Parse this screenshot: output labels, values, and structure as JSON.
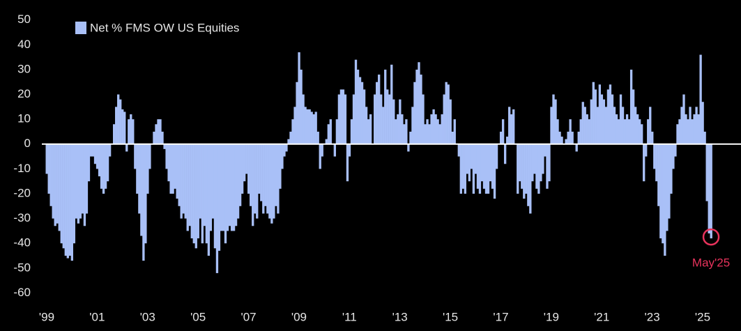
{
  "chart_data": {
    "type": "bar",
    "legend": "Net % FMS OW US Equities",
    "color": "#a9c0f7",
    "annotation": {
      "label": "May'25",
      "index": 316,
      "color": "#e8335c"
    },
    "ylim": [
      -65.5,
      57.5
    ],
    "yticks": [
      -60,
      -50,
      -40,
      -30,
      -20,
      -10,
      0,
      10,
      20,
      30,
      40,
      50
    ],
    "categories": [
      "'99",
      null,
      null,
      null,
      null,
      null,
      null,
      null,
      null,
      null,
      null,
      null,
      null,
      null,
      null,
      null,
      null,
      null,
      null,
      null,
      null,
      null,
      null,
      null,
      "'01",
      null,
      null,
      null,
      null,
      null,
      null,
      null,
      null,
      null,
      null,
      null,
      null,
      null,
      null,
      null,
      null,
      null,
      null,
      null,
      null,
      null,
      null,
      null,
      "'03",
      null,
      null,
      null,
      null,
      null,
      null,
      null,
      null,
      null,
      null,
      null,
      null,
      null,
      null,
      null,
      null,
      null,
      null,
      null,
      null,
      null,
      null,
      null,
      "'05",
      null,
      null,
      null,
      null,
      null,
      null,
      null,
      null,
      null,
      null,
      null,
      null,
      null,
      null,
      null,
      null,
      null,
      null,
      null,
      null,
      null,
      null,
      null,
      "'07",
      null,
      null,
      null,
      null,
      null,
      null,
      null,
      null,
      null,
      null,
      null,
      null,
      null,
      null,
      null,
      null,
      null,
      null,
      null,
      null,
      null,
      null,
      null,
      "'09",
      null,
      null,
      null,
      null,
      null,
      null,
      null,
      null,
      null,
      null,
      null,
      null,
      null,
      null,
      null,
      null,
      null,
      null,
      null,
      null,
      null,
      null,
      null,
      "'11",
      null,
      null,
      null,
      null,
      null,
      null,
      null,
      null,
      null,
      null,
      null,
      null,
      null,
      null,
      null,
      null,
      null,
      null,
      null,
      null,
      null,
      null,
      null,
      "'13",
      null,
      null,
      null,
      null,
      null,
      null,
      null,
      null,
      null,
      null,
      null,
      null,
      null,
      null,
      null,
      null,
      null,
      null,
      null,
      null,
      null,
      null,
      null,
      "'15",
      null,
      null,
      null,
      null,
      null,
      null,
      null,
      null,
      null,
      null,
      null,
      null,
      null,
      null,
      null,
      null,
      null,
      null,
      null,
      null,
      null,
      null,
      null,
      "'17",
      null,
      null,
      null,
      null,
      null,
      null,
      null,
      null,
      null,
      null,
      null,
      null,
      null,
      null,
      null,
      null,
      null,
      null,
      null,
      null,
      null,
      null,
      null,
      "'19",
      null,
      null,
      null,
      null,
      null,
      null,
      null,
      null,
      null,
      null,
      null,
      null,
      null,
      null,
      null,
      null,
      null,
      null,
      null,
      null,
      null,
      null,
      null,
      "'21",
      null,
      null,
      null,
      null,
      null,
      null,
      null,
      null,
      null,
      null,
      null,
      null,
      null,
      null,
      null,
      null,
      null,
      null,
      null,
      null,
      null,
      null,
      null,
      "'23",
      null,
      null,
      null,
      null,
      null,
      null,
      null,
      null,
      null,
      null,
      null,
      null,
      null,
      null,
      null,
      null,
      null,
      null,
      null,
      null,
      null,
      null,
      null,
      "'25",
      null,
      null,
      null,
      null
    ],
    "values": [
      -12,
      -20,
      -25,
      -30,
      -33,
      -32,
      -35,
      -40,
      -42,
      -45,
      -46,
      -45,
      -47,
      -40,
      -30,
      -32,
      -30,
      -28,
      -33,
      -28,
      -15,
      -5,
      -5,
      -8,
      -10,
      -13,
      -18,
      -20,
      -18,
      -15,
      -5,
      0,
      8,
      15,
      20,
      18,
      14,
      13,
      -3,
      10,
      12,
      10,
      -10,
      -20,
      -28,
      -37,
      -47,
      -40,
      -20,
      -10,
      0,
      5,
      8,
      10,
      10,
      5,
      -2,
      -10,
      -15,
      -20,
      -20,
      -18,
      -22,
      -25,
      -30,
      -28,
      -30,
      -35,
      -33,
      -38,
      -40,
      -42,
      -38,
      -30,
      -40,
      -33,
      -40,
      -45,
      -35,
      -30,
      -42,
      -52,
      -43,
      -35,
      -35,
      -40,
      -35,
      -33,
      -35,
      -35,
      -33,
      -30,
      -25,
      -20,
      -15,
      -12,
      -20,
      -25,
      -33,
      -28,
      -30,
      -20,
      -23,
      -28,
      -25,
      -28,
      -30,
      -32,
      -30,
      -25,
      -28,
      -18,
      -10,
      -5,
      -3,
      2,
      5,
      10,
      15,
      25,
      37,
      30,
      20,
      15,
      14,
      14,
      13,
      12,
      13,
      5,
      -10,
      -5,
      0,
      2,
      8,
      10,
      0,
      -5,
      10,
      20,
      22,
      22,
      20,
      -15,
      -5,
      10,
      20,
      34,
      30,
      27,
      25,
      22,
      15,
      10,
      12,
      0,
      20,
      25,
      28,
      20,
      15,
      30,
      22,
      20,
      32,
      18,
      10,
      12,
      18,
      12,
      8,
      10,
      -3,
      5,
      15,
      25,
      30,
      33,
      28,
      20,
      8,
      10,
      8,
      12,
      14,
      12,
      10,
      8,
      12,
      20,
      25,
      24,
      18,
      5,
      10,
      0,
      -5,
      -20,
      -18,
      -20,
      -12,
      -15,
      -10,
      -20,
      -12,
      -18,
      -20,
      -15,
      -18,
      -20,
      -20,
      -15,
      -18,
      -22,
      -10,
      0,
      5,
      10,
      -8,
      3,
      15,
      12,
      14,
      0,
      -20,
      -15,
      -18,
      -22,
      -20,
      -25,
      -28,
      -15,
      -12,
      -18,
      -20,
      -15,
      -12,
      -5,
      -18,
      -15,
      15,
      20,
      18,
      10,
      5,
      3,
      0,
      2,
      5,
      10,
      5,
      0,
      -3,
      5,
      10,
      17,
      15,
      12,
      10,
      18,
      25,
      22,
      15,
      24,
      20,
      18,
      15,
      22,
      24,
      20,
      15,
      12,
      10,
      20,
      15,
      10,
      12,
      10,
      30,
      22,
      15,
      12,
      10,
      8,
      -15,
      -5,
      10,
      15,
      5,
      -10,
      -15,
      -25,
      -38,
      -40,
      -45,
      -35,
      -30,
      -20,
      -10,
      -5,
      8,
      10,
      15,
      20,
      12,
      10,
      15,
      10,
      12,
      15,
      12,
      36,
      17,
      5,
      -23,
      -36,
      -38
    ]
  }
}
